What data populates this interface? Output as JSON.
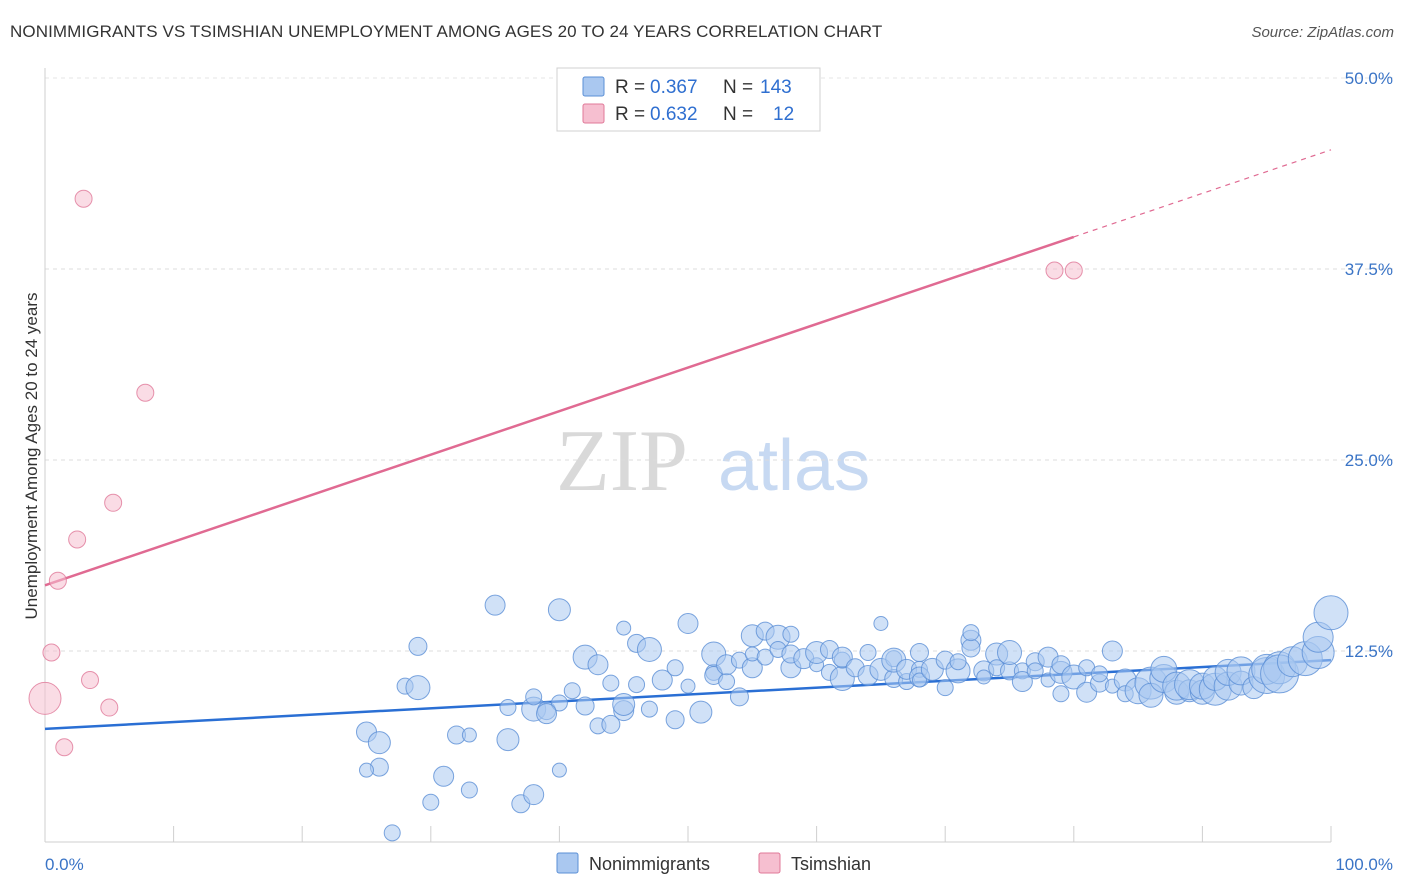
{
  "title": "NONIMMIGRANTS VS TSIMSHIAN UNEMPLOYMENT AMONG AGES 20 TO 24 YEARS CORRELATION CHART",
  "source": "Source: ZipAtlas.com",
  "watermark": {
    "zip": "ZIP",
    "atlas": "atlas"
  },
  "legend": {
    "r_label": "R =",
    "n_label": "N =",
    "rows": [
      {
        "r": "0.367",
        "n": "143",
        "fill": "#aac8f0",
        "stroke": "#5b8fd6"
      },
      {
        "r": "0.632",
        "n": "12",
        "fill": "#f6bfd0",
        "stroke": "#e07898"
      }
    ]
  },
  "bottom_legend": [
    "Nonimmigrants",
    "Tsimshian"
  ],
  "chart_data": {
    "type": "scatter",
    "title": "NONIMMIGRANTS VS TSIMSHIAN UNEMPLOYMENT AMONG AGES 20 TO 24 YEARS CORRELATION CHART",
    "xlabel": "",
    "ylabel": "Unemployment Among Ages 20 to 24 years",
    "xlim": [
      0,
      100
    ],
    "ylim": [
      0,
      50
    ],
    "x_tick_labels": [
      "0.0%",
      "100.0%"
    ],
    "y_ticks": [
      12.5,
      25.0,
      37.5,
      50.0
    ],
    "y_tick_labels": [
      "12.5%",
      "25.0%",
      "37.5%",
      "50.0%"
    ],
    "grid": true,
    "legend_position": "top-center",
    "series": [
      {
        "name": "Nonimmigrants",
        "color": "#5b8fd6",
        "fill": "#aac8f0",
        "trend": {
          "x": [
            0,
            100
          ],
          "y": [
            7.4,
            11.9
          ]
        },
        "points": [
          [
            26,
            4.9
          ],
          [
            28,
            10.2
          ],
          [
            25,
            7.2
          ],
          [
            25,
            4.7
          ],
          [
            26,
            6.5
          ],
          [
            27,
            0.6
          ],
          [
            29,
            12.8
          ],
          [
            29,
            10.1
          ],
          [
            30,
            2.6
          ],
          [
            31,
            4.3
          ],
          [
            32,
            7.0
          ],
          [
            33,
            3.4
          ],
          [
            35,
            15.5
          ],
          [
            33,
            7.0
          ],
          [
            36,
            6.7
          ],
          [
            36,
            8.8
          ],
          [
            37,
            2.5
          ],
          [
            38,
            8.7
          ],
          [
            38,
            9.5
          ],
          [
            38,
            3.1
          ],
          [
            39,
            8.6
          ],
          [
            40,
            9.1
          ],
          [
            39,
            8.4
          ],
          [
            40,
            4.7
          ],
          [
            40,
            15.2
          ],
          [
            41,
            9.9
          ],
          [
            42,
            8.9
          ],
          [
            42,
            12.1
          ],
          [
            43,
            7.6
          ],
          [
            43,
            11.6
          ],
          [
            44,
            7.7
          ],
          [
            44,
            10.4
          ],
          [
            45,
            8.6
          ],
          [
            45,
            14.0
          ],
          [
            45,
            9.0
          ],
          [
            46,
            10.3
          ],
          [
            46,
            13.0
          ],
          [
            47,
            12.6
          ],
          [
            47,
            8.7
          ],
          [
            48,
            10.6
          ],
          [
            49,
            8.0
          ],
          [
            49,
            11.4
          ],
          [
            50,
            14.3
          ],
          [
            50,
            10.2
          ],
          [
            51,
            8.5
          ],
          [
            52,
            11.1
          ],
          [
            52,
            10.9
          ],
          [
            52,
            12.3
          ],
          [
            53,
            10.5
          ],
          [
            53,
            11.6
          ],
          [
            54,
            9.5
          ],
          [
            54,
            11.9
          ],
          [
            55,
            11.4
          ],
          [
            55,
            12.3
          ],
          [
            55,
            13.5
          ],
          [
            56,
            12.1
          ],
          [
            56,
            13.8
          ],
          [
            57,
            13.4
          ],
          [
            57,
            12.6
          ],
          [
            58,
            11.4
          ],
          [
            58,
            12.3
          ],
          [
            58,
            13.6
          ],
          [
            59,
            12.0
          ],
          [
            60,
            11.6
          ],
          [
            60,
            12.4
          ],
          [
            61,
            11.1
          ],
          [
            61,
            12.6
          ],
          [
            62,
            10.7
          ],
          [
            62,
            11.9
          ],
          [
            62,
            12.1
          ],
          [
            63,
            11.4
          ],
          [
            64,
            12.4
          ],
          [
            64,
            10.9
          ],
          [
            65,
            14.3
          ],
          [
            65,
            11.3
          ],
          [
            66,
            12.0
          ],
          [
            66,
            10.7
          ],
          [
            66,
            11.9
          ],
          [
            67,
            10.5
          ],
          [
            67,
            11.3
          ],
          [
            68,
            12.4
          ],
          [
            68,
            11.3
          ],
          [
            68,
            10.8
          ],
          [
            68,
            10.6
          ],
          [
            69,
            11.3
          ],
          [
            70,
            10.1
          ],
          [
            70,
            11.9
          ],
          [
            71,
            11.2
          ],
          [
            71,
            11.8
          ],
          [
            72,
            13.2
          ],
          [
            72,
            12.7
          ],
          [
            72,
            13.7
          ],
          [
            73,
            11.2
          ],
          [
            73,
            10.8
          ],
          [
            74,
            12.3
          ],
          [
            74,
            11.4
          ],
          [
            75,
            11.2
          ],
          [
            75,
            12.4
          ],
          [
            76,
            11.2
          ],
          [
            76,
            10.5
          ],
          [
            77,
            11.8
          ],
          [
            77,
            11.2
          ],
          [
            78,
            12.1
          ],
          [
            78,
            10.6
          ],
          [
            79,
            11.1
          ],
          [
            79,
            9.7
          ],
          [
            79,
            11.6
          ],
          [
            80,
            10.8
          ],
          [
            81,
            11.4
          ],
          [
            81,
            9.8
          ],
          [
            82,
            10.4
          ],
          [
            82,
            11.0
          ],
          [
            83,
            12.5
          ],
          [
            83,
            10.2
          ],
          [
            84,
            10.6
          ],
          [
            84,
            9.7
          ],
          [
            85,
            9.9
          ],
          [
            86,
            10.4
          ],
          [
            86,
            9.6
          ],
          [
            87,
            10.7
          ],
          [
            87,
            11.3
          ],
          [
            88,
            9.8
          ],
          [
            88,
            10.2
          ],
          [
            89,
            9.9
          ],
          [
            89,
            10.3
          ],
          [
            90,
            9.8
          ],
          [
            90,
            10.2
          ],
          [
            91,
            10.0
          ],
          [
            91,
            10.7
          ],
          [
            92,
            10.2
          ],
          [
            92,
            11.1
          ],
          [
            93,
            10.4
          ],
          [
            93,
            11.2
          ],
          [
            94,
            10.1
          ],
          [
            95,
            10.9
          ],
          [
            95,
            11.3
          ],
          [
            96,
            11.4
          ],
          [
            96,
            11.0
          ],
          [
            97,
            11.8
          ],
          [
            98,
            12.0
          ],
          [
            99,
            12.4
          ],
          [
            99,
            13.4
          ],
          [
            100,
            15.0
          ]
        ]
      },
      {
        "name": "Tsimshian",
        "color": "#e07898",
        "fill": "#f6bfd0",
        "trend": {
          "x": [
            0,
            80
          ],
          "y": [
            16.8,
            39.6
          ],
          "dashed_to": [
            100,
            45.3
          ]
        },
        "points": [
          [
            0,
            9.4
          ],
          [
            0.5,
            12.4
          ],
          [
            1,
            17.1
          ],
          [
            1.5,
            6.2
          ],
          [
            2.5,
            19.8
          ],
          [
            3,
            42.1
          ],
          [
            3.5,
            10.6
          ],
          [
            5,
            8.8
          ],
          [
            5.3,
            22.2
          ],
          [
            7.8,
            29.4
          ],
          [
            78.5,
            37.4
          ],
          [
            80,
            37.4
          ]
        ]
      }
    ]
  }
}
